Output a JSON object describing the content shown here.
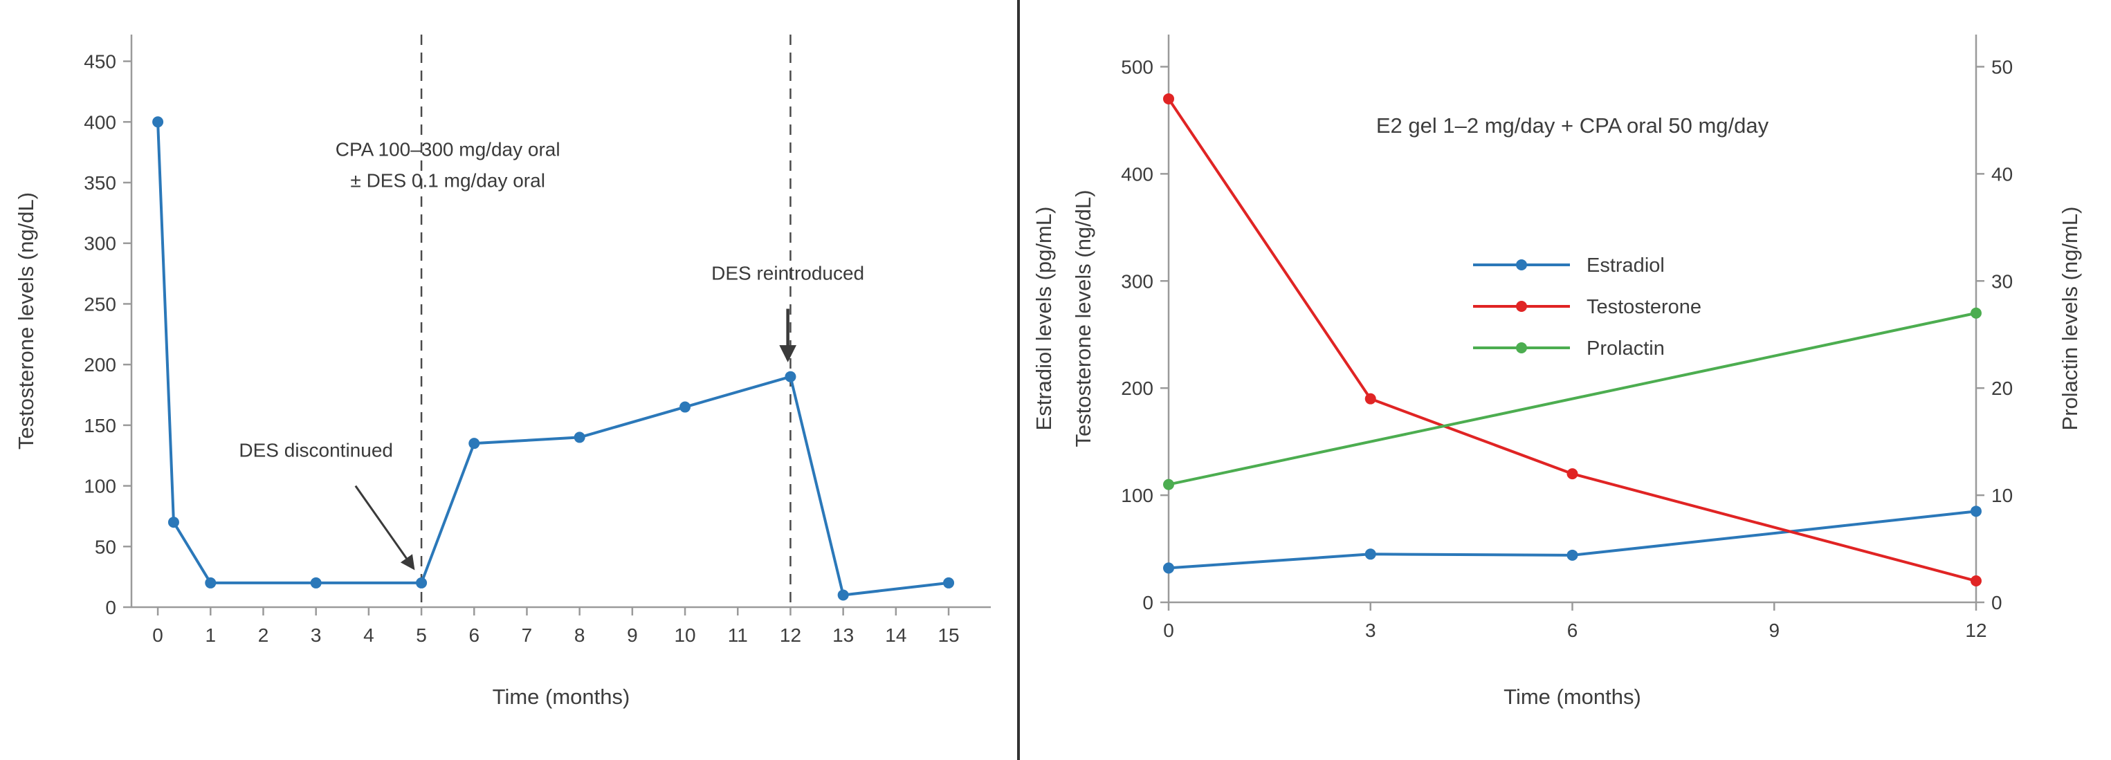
{
  "page": {
    "background": "#ffffff",
    "divider_color": "#333333"
  },
  "colors": {
    "blue": "#2b78b9",
    "red": "#e02424",
    "green": "#4cad50",
    "spine": "#9a9a9a",
    "text": "#3d3d3d",
    "annotation": "#3a3a3a",
    "dashed": "#4a4a4a"
  },
  "chart_data": [
    {
      "id": "left",
      "type": "line",
      "title": "",
      "xlabel": "Time (months)",
      "ylabel": "Testosterone levels (ng/dL)",
      "xlim": [
        -0.5,
        15.8
      ],
      "ylim": [
        0,
        472
      ],
      "xticks": [
        0,
        1,
        2,
        3,
        4,
        5,
        6,
        7,
        8,
        9,
        10,
        11,
        12,
        13,
        14,
        15
      ],
      "yticks": [
        0,
        50,
        100,
        150,
        200,
        250,
        300,
        350,
        400,
        450
      ],
      "grid": false,
      "series": [
        {
          "name": "Testosterone",
          "color": "#2b78b9",
          "axis": "left",
          "x": [
            0,
            0.3,
            1,
            3,
            5,
            6,
            8,
            10,
            12,
            13,
            15
          ],
          "y": [
            400,
            70,
            20,
            20,
            20,
            135,
            140,
            165,
            190,
            10,
            20
          ]
        }
      ],
      "vlines": [
        {
          "x": 5,
          "style": "dashed"
        },
        {
          "x": 12,
          "style": "dashed"
        }
      ],
      "annotations": [
        {
          "name": "regimen-label",
          "lines": [
            "CPA 100–300 mg/day oral",
            "± DES 0.1 mg/day oral"
          ],
          "x": 5.5,
          "y": 372
        },
        {
          "name": "des-discontinued-label",
          "lines": [
            "DES discontinued"
          ],
          "x": 3.0,
          "y": 124
        },
        {
          "name": "des-reintroduced-label",
          "lines": [
            "DES reintroduced"
          ],
          "x": 11.95,
          "y": 270
        }
      ],
      "arrows": [
        {
          "from": {
            "x": 3.75,
            "y": 100
          },
          "to": {
            "x": 4.85,
            "y": 32
          },
          "bold": false
        },
        {
          "from": {
            "x": 11.95,
            "y": 246
          },
          "to": {
            "x": 11.95,
            "y": 204
          },
          "bold": true
        }
      ]
    },
    {
      "id": "right",
      "type": "line",
      "title": "E2 gel 1–2 mg/day + CPA oral 50 mg/day",
      "xlabel": "Time (months)",
      "ylabel_left_lines": [
        "Estradiol levels (pg/mL)",
        "Testosterone levels (ng/dL)"
      ],
      "ylabel_right": "Prolactin levels (ng/mL)",
      "xlim": [
        0,
        12
      ],
      "ylim": [
        0,
        530
      ],
      "y2lim": [
        0,
        53
      ],
      "xticks": [
        0,
        3,
        6,
        9,
        12
      ],
      "yticks": [
        0,
        100,
        200,
        300,
        400,
        500
      ],
      "y2ticks": [
        0,
        10,
        20,
        30,
        40,
        50
      ],
      "grid": false,
      "legend": {
        "position": "upper-center",
        "entries": [
          "Estradiol",
          "Testosterone",
          "Prolactin"
        ]
      },
      "series": [
        {
          "name": "Estradiol",
          "color": "#2b78b9",
          "axis": "left",
          "x": [
            0,
            3,
            6,
            12
          ],
          "y": [
            32,
            45,
            44,
            85
          ]
        },
        {
          "name": "Testosterone",
          "color": "#e02424",
          "axis": "left",
          "x": [
            0,
            3,
            6,
            12
          ],
          "y": [
            470,
            190,
            120,
            20
          ]
        },
        {
          "name": "Prolactin",
          "color": "#4cad50",
          "axis": "right",
          "x": [
            0,
            12
          ],
          "y": [
            11,
            27
          ]
        }
      ]
    }
  ]
}
